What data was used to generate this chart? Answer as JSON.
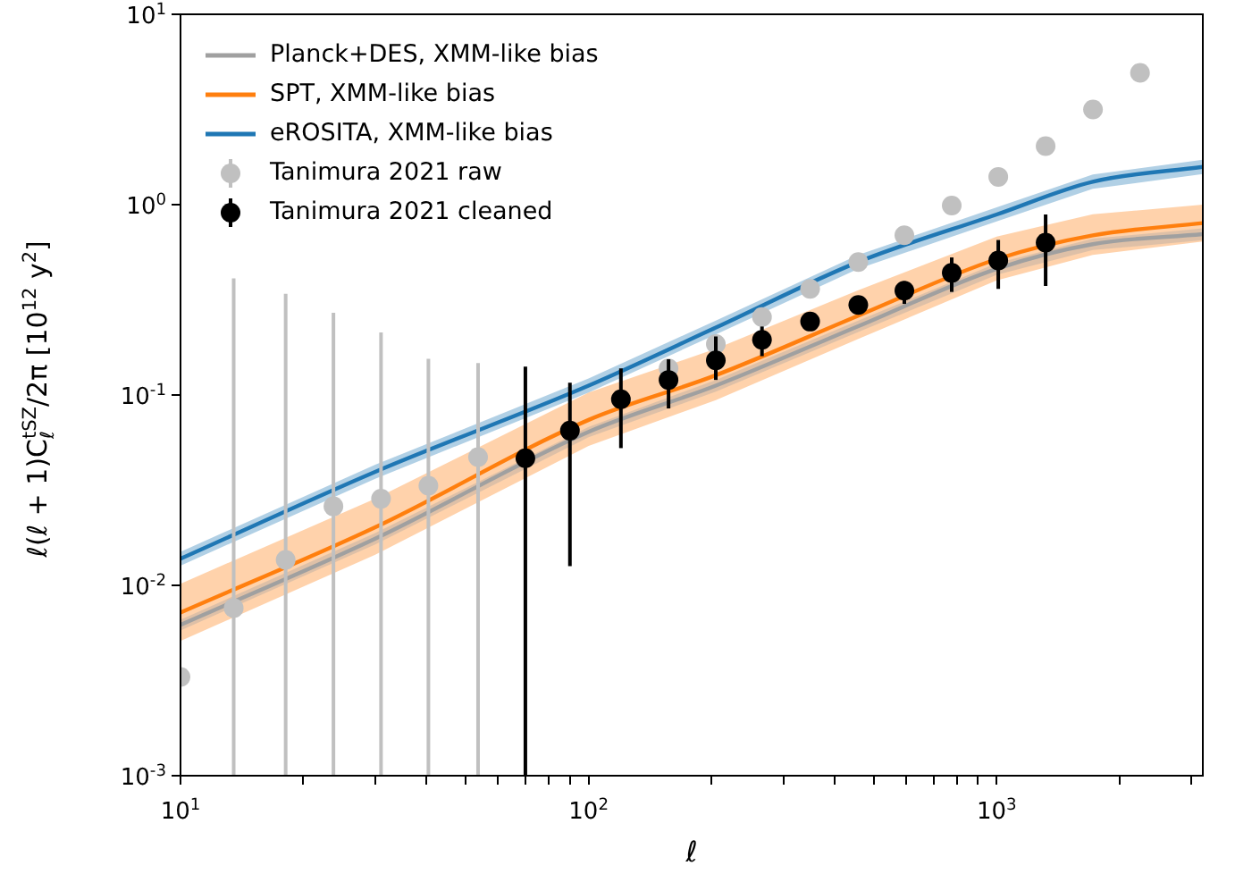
{
  "chart_data": {
    "type": "line",
    "xlabel": "ℓ",
    "ylabel": "ℓ(ℓ + 1)C$_{ℓ}$$^{tSZ}$/2π [10$^{12}$ y$^{2}$]",
    "log": "xy",
    "grid": false,
    "legend": "top left",
    "xlim": [
      10,
      3200
    ],
    "ylim": [
      0.001,
      10
    ],
    "xticks": [
      {
        "value": 10,
        "label": "10$^{1}$"
      },
      {
        "value": 20,
        "label": null
      },
      {
        "value": 30,
        "label": null
      },
      {
        "value": 40,
        "label": null
      },
      {
        "value": 50,
        "label": null
      },
      {
        "value": 60,
        "label": null
      },
      {
        "value": 70,
        "label": null
      },
      {
        "value": 80,
        "label": null
      },
      {
        "value": 90,
        "label": null
      },
      {
        "value": 100,
        "label": "10$^{2}$"
      },
      {
        "value": 200,
        "label": null
      },
      {
        "value": 300,
        "label": null
      },
      {
        "value": 400,
        "label": null
      },
      {
        "value": 500,
        "label": null
      },
      {
        "value": 600,
        "label": null
      },
      {
        "value": 700,
        "label": null
      },
      {
        "value": 800,
        "label": null
      },
      {
        "value": 900,
        "label": null
      },
      {
        "value": 1000,
        "label": "10$^{3}$"
      },
      {
        "value": 2000,
        "label": null
      },
      {
        "value": 3000,
        "label": null
      }
    ],
    "yticks": [
      {
        "value": 0.001,
        "label": "10$^{-3}$"
      },
      {
        "value": 0.01,
        "label": "10$^{-2}$"
      },
      {
        "value": 0.1,
        "label": "10$^{-1}$"
      },
      {
        "value": 1,
        "label": "10$^{0}$"
      },
      {
        "value": 10,
        "label": "10$^{1}$"
      }
    ],
    "series": [
      {
        "name": "Planck+DES, XMM-like bias",
        "color": "#a0a0a0",
        "marker": "none",
        "x": [
          10,
          30,
          100,
          205,
          458,
          1000,
          1720,
          3200
        ],
        "values": [
          0.0062,
          0.0176,
          0.064,
          0.112,
          0.23,
          0.46,
          0.62,
          0.7
        ],
        "lower": [
          0.0058,
          0.0164,
          0.06,
          0.104,
          0.214,
          0.428,
          0.577,
          0.65
        ],
        "upper": [
          0.0066,
          0.0188,
          0.068,
          0.12,
          0.246,
          0.492,
          0.663,
          0.75
        ]
      },
      {
        "name": "SPT, XMM-like bias",
        "color": "#ff7f0e",
        "marker": "none",
        "x": [
          10,
          30,
          100,
          205,
          458,
          1000,
          1720,
          3200
        ],
        "values": [
          0.0072,
          0.0202,
          0.074,
          0.127,
          0.261,
          0.517,
          0.69,
          0.8
        ],
        "lower": [
          0.0051,
          0.0145,
          0.054,
          0.094,
          0.197,
          0.4,
          0.545,
          0.64
        ],
        "upper": [
          0.0102,
          0.0285,
          0.103,
          0.175,
          0.355,
          0.68,
          0.89,
          1.0
        ]
      },
      {
        "name": "eROSITA, XMM-like bias",
        "color": "#1f77b4",
        "marker": "none",
        "x": [
          10,
          30,
          100,
          205,
          458,
          1000,
          1720,
          3200
        ],
        "values": [
          0.0138,
          0.0395,
          0.112,
          0.226,
          0.5,
          0.888,
          1.32,
          1.58
        ],
        "lower": [
          0.0127,
          0.0363,
          0.103,
          0.208,
          0.46,
          0.817,
          1.21,
          1.45
        ],
        "upper": [
          0.015,
          0.043,
          0.122,
          0.246,
          0.545,
          0.968,
          1.44,
          1.72
        ]
      },
      {
        "type": "scatter",
        "name": "Tanimura 2021 raw",
        "color": "#c0c0c0",
        "marker": "circle",
        "x": [
          10,
          13.5,
          18.1,
          23.7,
          31,
          40.5,
          53.6,
          70,
          90,
          120,
          157,
          205,
          266,
          349,
          458,
          594,
          776,
          1009,
          1318,
          1722,
          2245
        ],
        "values": [
          0.0033,
          0.0076,
          0.0136,
          0.026,
          0.0285,
          0.0334,
          0.0472,
          null,
          null,
          null,
          0.138,
          0.185,
          0.257,
          0.361,
          0.499,
          0.69,
          0.99,
          1.4,
          2.03,
          3.16,
          4.93
        ],
        "errors": [
          null,
          [
            0.001,
            0.41
          ],
          [
            0.001,
            0.34
          ],
          [
            0.001,
            0.27
          ],
          [
            0.001,
            0.213
          ],
          [
            0.001,
            0.155
          ],
          [
            0.001,
            0.147
          ],
          null,
          null,
          null,
          null,
          null,
          null,
          null,
          null,
          null,
          null,
          null,
          null,
          null,
          null
        ]
      },
      {
        "type": "scatter",
        "name": "Tanimura 2021 cleaned",
        "color": "#000000",
        "marker": "circle",
        "x": [
          70,
          90,
          120,
          157,
          205,
          266,
          349,
          458,
          594,
          776,
          1009,
          1318
        ],
        "values": [
          0.0465,
          0.065,
          0.095,
          0.12,
          0.152,
          0.195,
          0.243,
          0.297,
          0.353,
          0.438,
          0.509,
          0.632
        ],
        "errors": [
          [
            0.001,
            0.141
          ],
          [
            0.0126,
            0.116
          ],
          [
            0.0526,
            0.138
          ],
          [
            0.085,
            0.154
          ],
          [
            0.12,
            0.203
          ],
          [
            0.16,
            0.229
          ],
          null,
          null,
          [
            0.301,
            0.396
          ],
          [
            0.348,
            0.528
          ],
          [
            0.361,
            0.652
          ],
          [
            0.374,
            0.888
          ]
        ]
      }
    ]
  }
}
